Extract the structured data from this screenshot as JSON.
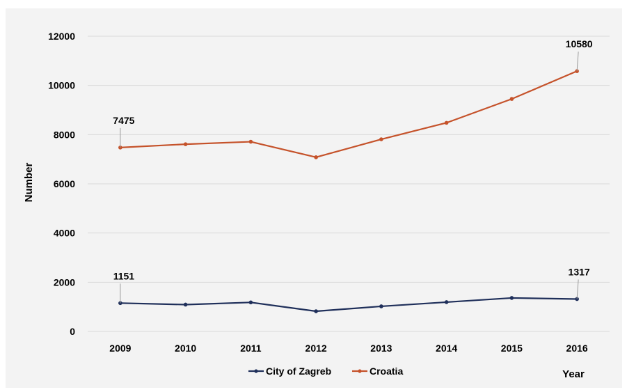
{
  "chart_data": {
    "type": "line",
    "title": "",
    "xlabel": "Year",
    "ylabel": "Number",
    "ylim": [
      0,
      12000
    ],
    "yticks": [
      "0",
      "2000",
      "4000",
      "6000",
      "8000",
      "10000",
      "12000"
    ],
    "categories": [
      "2009",
      "2010",
      "2011",
      "2012",
      "2013",
      "2014",
      "2015",
      "2016"
    ],
    "grid": true,
    "legend_position": "bottom",
    "series": [
      {
        "name": "City of Zagreb",
        "color": "#1f2f5a",
        "values": [
          1151,
          1090,
          1180,
          820,
          1020,
          1190,
          1360,
          1317
        ]
      },
      {
        "name": "Croatia",
        "color": "#c5522a",
        "values": [
          7475,
          7610,
          7710,
          7080,
          7810,
          8480,
          9450,
          10580
        ]
      }
    ],
    "annotations": [
      {
        "series": 1,
        "index": 0,
        "text": "7475"
      },
      {
        "series": 1,
        "index": 7,
        "text": "10580"
      },
      {
        "series": 0,
        "index": 0,
        "text": "1151"
      },
      {
        "series": 0,
        "index": 7,
        "text": "1317"
      }
    ]
  }
}
